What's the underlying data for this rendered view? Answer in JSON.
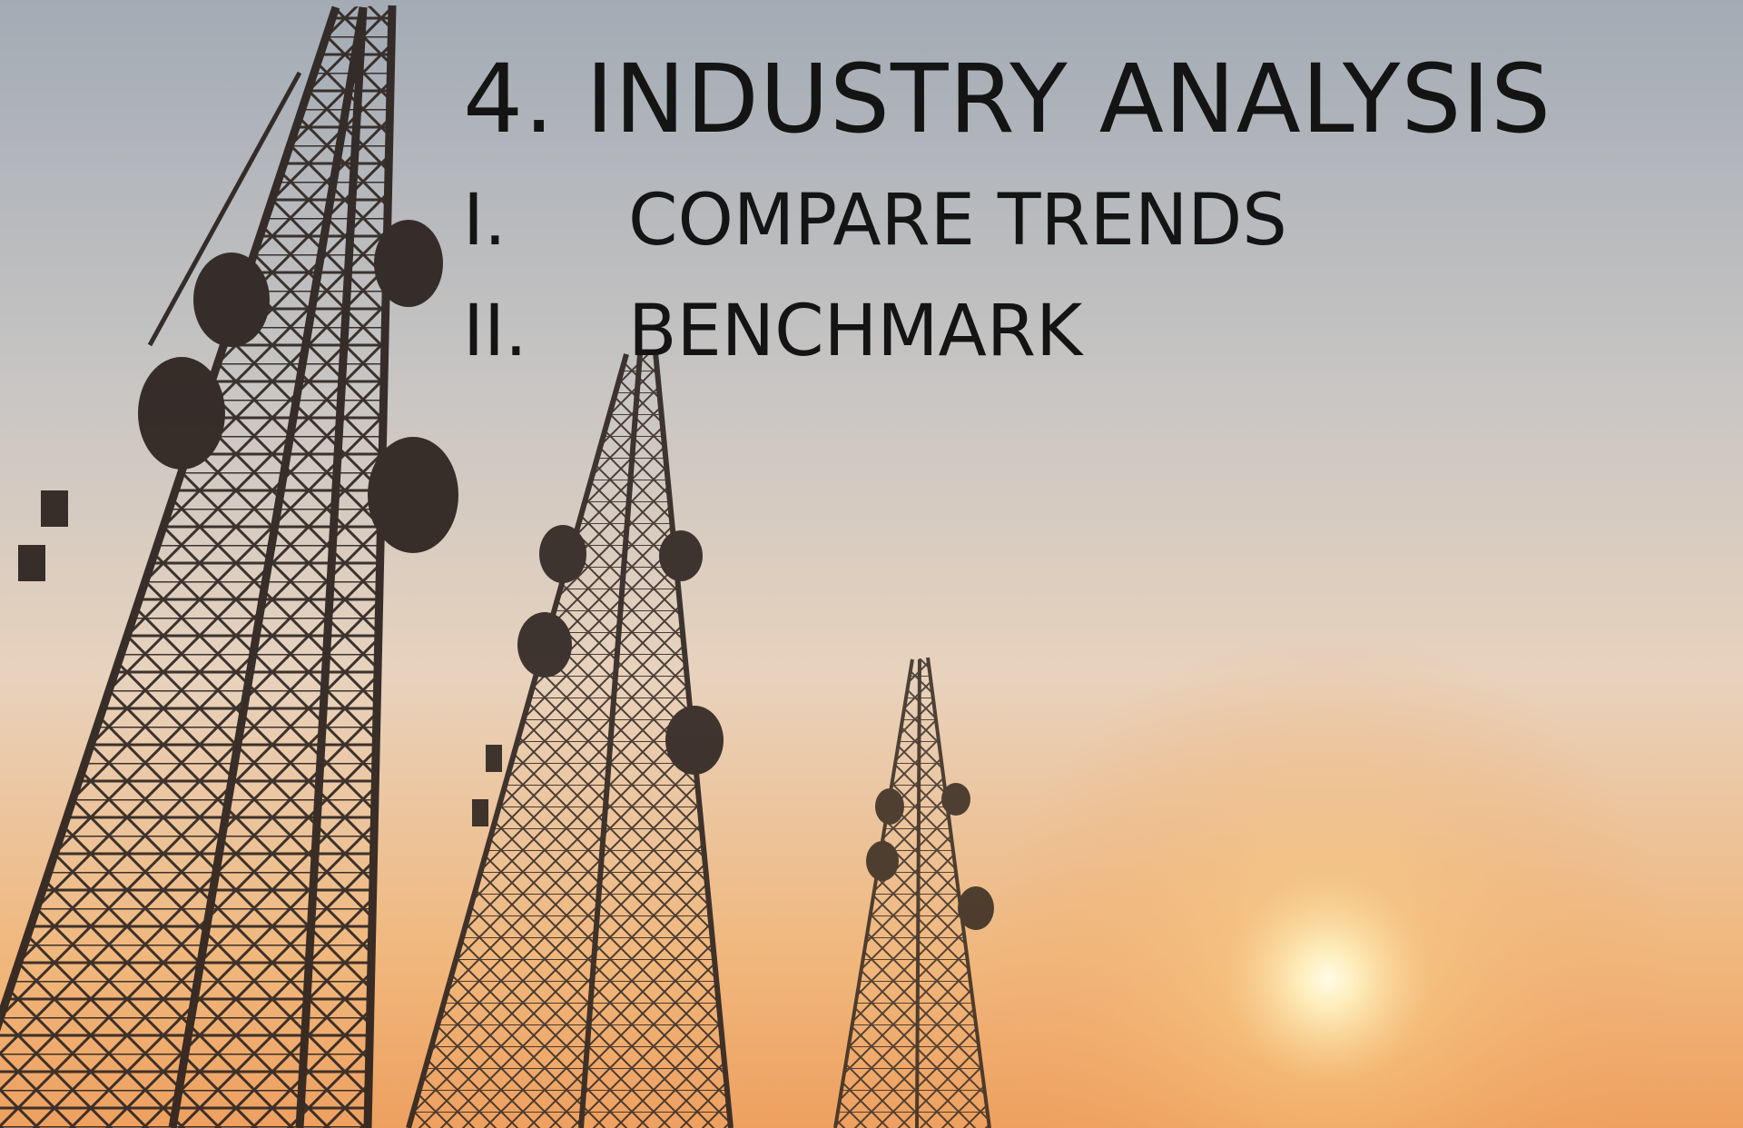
{
  "slide": {
    "title": "4. INDUSTRY ANALYSIS",
    "items": [
      {
        "numeral": "I.",
        "text": "COMPARE TRENDS"
      },
      {
        "numeral": "II.",
        "text": "BENCHMARK"
      }
    ]
  }
}
